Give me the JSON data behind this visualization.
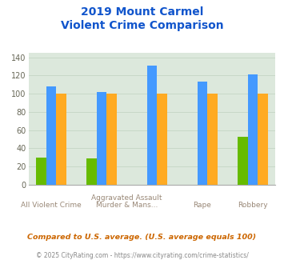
{
  "title_line1": "2019 Mount Carmel",
  "title_line2": "Violent Crime Comparison",
  "series": {
    "Mount Carmel": {
      "values": [
        30,
        29,
        0,
        0,
        53
      ],
      "color": "#66bb00"
    },
    "Illinois": {
      "values": [
        108,
        102,
        131,
        113,
        121
      ],
      "color": "#4499ff"
    },
    "National": {
      "values": [
        100,
        100,
        100,
        100,
        100
      ],
      "color": "#ffaa22"
    }
  },
  "group_labels_top": [
    "",
    "Aggravated Assault",
    "Assault",
    "",
    ""
  ],
  "group_labels_bot": [
    "All Violent Crime",
    "Murder & Mans...",
    "Murder & Mans...",
    "Rape",
    "Robbery"
  ],
  "ylim": [
    0,
    145
  ],
  "yticks": [
    0,
    20,
    40,
    60,
    80,
    100,
    120,
    140
  ],
  "grid_color": "#c8d8c8",
  "bg_color": "#dce8dc",
  "title_color": "#1155cc",
  "xlabel_color": "#998877",
  "legend_label_color": "#333333",
  "footnote1": "Compared to U.S. average. (U.S. average equals 100)",
  "footnote2": "© 2025 CityRating.com - https://www.cityrating.com/crime-statistics/",
  "footnote1_color": "#cc6600",
  "footnote2_color": "#888888"
}
